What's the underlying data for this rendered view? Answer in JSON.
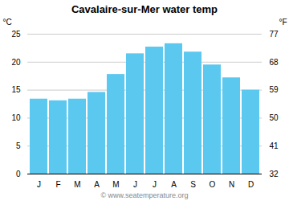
{
  "chart_data": {
    "type": "bar",
    "title": "Cavalaire-sur-Mer water temp",
    "categories": [
      "J",
      "F",
      "M",
      "A",
      "M",
      "J",
      "J",
      "A",
      "S",
      "O",
      "N",
      "D"
    ],
    "values": [
      13.4,
      13.1,
      13.4,
      14.6,
      17.8,
      21.5,
      22.7,
      23.3,
      21.8,
      19.5,
      17.2,
      15.0
    ],
    "color": "#5bc8f0",
    "ylabel": "°C",
    "ylim": [
      0,
      25
    ],
    "yticks": [
      0,
      5,
      10,
      15,
      20,
      25
    ],
    "y2label": "°F",
    "y2lim": [
      32,
      77
    ],
    "y2ticks": [
      32,
      41,
      50,
      59,
      68,
      77
    ],
    "grid": true,
    "annotations": [
      "© www.seatemperature.org"
    ]
  }
}
